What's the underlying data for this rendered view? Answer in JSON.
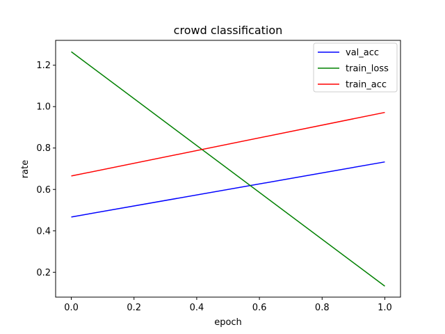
{
  "chart_data": {
    "type": "line",
    "title": "crowd classification",
    "xlabel": "epoch",
    "ylabel": "rate",
    "x": [
      0,
      1
    ],
    "xlim": [
      -0.05,
      1.05
    ],
    "ylim": [
      0.08,
      1.32
    ],
    "xticks": [
      0.0,
      0.2,
      0.4,
      0.6,
      0.8,
      1.0
    ],
    "xtick_labels": [
      "0.0",
      "0.2",
      "0.4",
      "0.6",
      "0.8",
      "1.0"
    ],
    "yticks": [
      0.2,
      0.4,
      0.6,
      0.8,
      1.0,
      1.2
    ],
    "ytick_labels": [
      "0.2",
      "0.4",
      "0.6",
      "0.8",
      "1.0",
      "1.2"
    ],
    "grid": false,
    "legend_position": "top-right",
    "series": [
      {
        "name": "val_acc",
        "color": "#0000ff",
        "values": [
          0.467,
          0.733
        ]
      },
      {
        "name": "train_loss",
        "color": "#008000",
        "values": [
          1.265,
          0.133
        ]
      },
      {
        "name": "train_acc",
        "color": "#ff0000",
        "values": [
          0.665,
          0.972
        ]
      }
    ]
  }
}
